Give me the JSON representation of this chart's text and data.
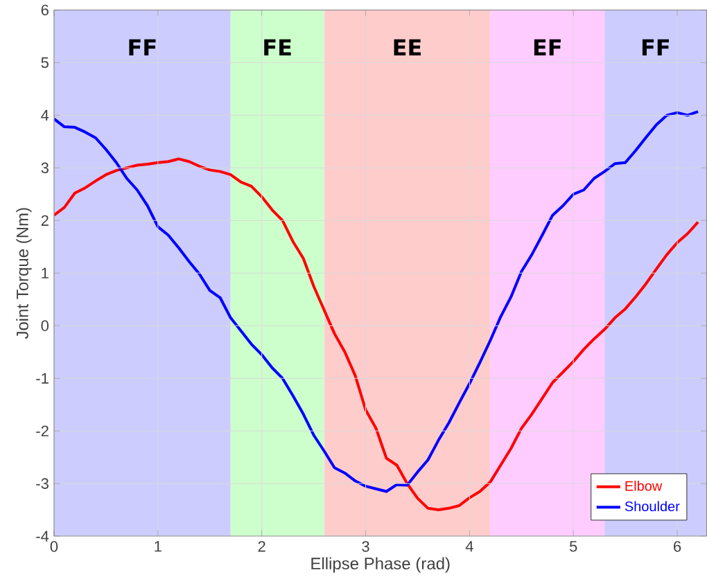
{
  "chart_data": {
    "type": "line",
    "xlabel": "Ellipse Phase (rad)",
    "ylabel": "Joint Torque (Nm)",
    "x": [
      0,
      0.1,
      0.2,
      0.3,
      0.4,
      0.5,
      0.6,
      0.7,
      0.8,
      0.9,
      1.0,
      1.1,
      1.2,
      1.3,
      1.4,
      1.5,
      1.6,
      1.7,
      1.8,
      1.9,
      2.0,
      2.1,
      2.2,
      2.3,
      2.4,
      2.5,
      2.6,
      2.7,
      2.8,
      2.9,
      3.0,
      3.1,
      3.2,
      3.3,
      3.4,
      3.5,
      3.6,
      3.7,
      3.8,
      3.9,
      4.0,
      4.1,
      4.2,
      4.3,
      4.4,
      4.5,
      4.6,
      4.7,
      4.8,
      4.9,
      5.0,
      5.1,
      5.2,
      5.3,
      5.4,
      5.5,
      5.6,
      5.7,
      5.8,
      5.9,
      6.0,
      6.1,
      6.2
    ],
    "series": [
      {
        "name": "Elbow",
        "color": "#ff0000",
        "values": [
          2.1,
          2.25,
          2.52,
          2.62,
          2.75,
          2.87,
          2.95,
          3.0,
          3.05,
          3.07,
          3.1,
          3.12,
          3.17,
          3.12,
          3.03,
          2.96,
          2.93,
          2.87,
          2.73,
          2.65,
          2.45,
          2.2,
          2.0,
          1.6,
          1.28,
          0.75,
          0.3,
          -0.15,
          -0.5,
          -0.95,
          -1.6,
          -1.95,
          -2.52,
          -2.65,
          -3.0,
          -3.28,
          -3.47,
          -3.5,
          -3.47,
          -3.42,
          -3.27,
          -3.15,
          -2.97,
          -2.65,
          -2.33,
          -1.95,
          -1.68,
          -1.38,
          -1.08,
          -0.88,
          -0.68,
          -0.45,
          -0.25,
          -0.07,
          0.15,
          0.32,
          0.55,
          0.8,
          1.08,
          1.35,
          1.58,
          1.75,
          1.97
        ]
      },
      {
        "name": "Shoulder",
        "color": "#0000ff",
        "values": [
          3.93,
          3.78,
          3.77,
          3.68,
          3.57,
          3.35,
          3.1,
          2.8,
          2.58,
          2.28,
          1.88,
          1.72,
          1.48,
          1.22,
          0.98,
          0.67,
          0.53,
          0.15,
          -0.1,
          -0.35,
          -0.55,
          -0.8,
          -1.0,
          -1.33,
          -1.68,
          -2.08,
          -2.38,
          -2.7,
          -2.8,
          -2.95,
          -3.05,
          -3.1,
          -3.15,
          -3.02,
          -3.03,
          -2.78,
          -2.55,
          -2.18,
          -1.85,
          -1.47,
          -1.1,
          -0.7,
          -0.28,
          0.17,
          0.55,
          1.03,
          1.35,
          1.72,
          2.1,
          2.28,
          2.5,
          2.58,
          2.8,
          2.93,
          3.08,
          3.1,
          3.33,
          3.58,
          3.82,
          4.0,
          4.05,
          4.0,
          4.07
        ]
      }
    ],
    "bands": [
      {
        "axis": "x",
        "from": 0,
        "to": 1.7,
        "label": "FF",
        "color": "#ccccff"
      },
      {
        "axis": "x",
        "from": 1.7,
        "to": 2.6,
        "label": "FE",
        "color": "#ccffcc"
      },
      {
        "axis": "x",
        "from": 2.6,
        "to": 4.2,
        "label": "EE",
        "color": "#ffcccc"
      },
      {
        "axis": "x",
        "from": 4.2,
        "to": 5.3,
        "label": "EF",
        "color": "#ffccff"
      },
      {
        "axis": "x",
        "from": 5.3,
        "to": 6.2832,
        "label": "FF",
        "color": "#ccccff"
      }
    ],
    "xlim": [
      0,
      6.2832
    ],
    "ylim": [
      -4,
      6
    ],
    "xticks": [
      0,
      1,
      2,
      3,
      4,
      5,
      6
    ],
    "yticks": [
      -4,
      -3,
      -2,
      -1,
      0,
      1,
      2,
      3,
      4,
      5,
      6
    ],
    "grid": true,
    "legend": "bottom right",
    "line_style": "solid",
    "marker": "none"
  }
}
